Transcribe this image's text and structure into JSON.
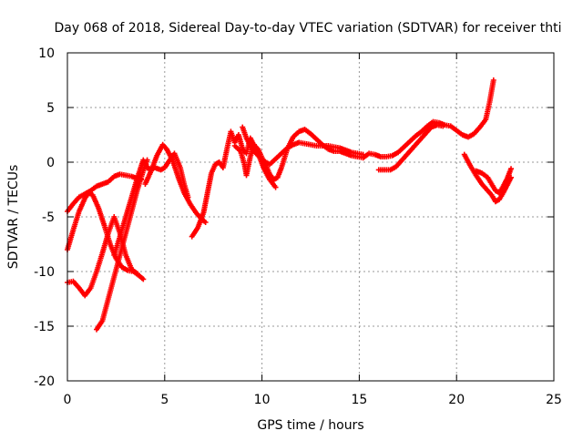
{
  "chart_data": {
    "type": "scatter",
    "title": "Day 068 of 2018, Sidereal Day-to-day VTEC variation (SDTVAR) for receiver thti",
    "xlabel": "GPS time / hours",
    "ylabel": "SDTVAR / TECUs",
    "xlim": [
      0,
      25
    ],
    "ylim": [
      -20,
      10
    ],
    "xticks": [
      0,
      5,
      10,
      15,
      20,
      25
    ],
    "yticks": [
      -20,
      -15,
      -10,
      -5,
      0,
      5,
      10
    ],
    "xtick_labels": [
      "0",
      "5",
      "10",
      "15",
      "20",
      "25"
    ],
    "ytick_labels": [
      "-20",
      "-15",
      "-10",
      "-5",
      "0",
      "5",
      "10"
    ],
    "grid": true,
    "legend": "none",
    "marker": "plus",
    "color": "#ff0000",
    "series": [
      {
        "points": [
          [
            0.0,
            -4.5
          ],
          [
            0.3,
            -3.8
          ],
          [
            0.6,
            -3.2
          ],
          [
            0.9,
            -2.9
          ],
          [
            1.2,
            -2.6
          ],
          [
            1.5,
            -2.2
          ],
          [
            1.8,
            -2.0
          ],
          [
            2.1,
            -1.8
          ],
          [
            2.4,
            -1.3
          ],
          [
            2.7,
            -1.1
          ],
          [
            3.0,
            -1.2
          ],
          [
            3.3,
            -1.3
          ],
          [
            3.6,
            -1.5
          ],
          [
            3.8,
            -1.6
          ]
        ]
      },
      {
        "points": [
          [
            0.0,
            -8.0
          ],
          [
            0.3,
            -6.2
          ],
          [
            0.6,
            -4.5
          ],
          [
            0.9,
            -3.3
          ],
          [
            1.1,
            -2.8
          ],
          [
            1.3,
            -3.0
          ],
          [
            1.6,
            -4.2
          ],
          [
            1.9,
            -5.8
          ],
          [
            2.2,
            -7.5
          ],
          [
            2.5,
            -8.8
          ],
          [
            2.8,
            -9.6
          ],
          [
            3.1,
            -9.9
          ],
          [
            3.4,
            -10.0
          ],
          [
            3.7,
            -10.4
          ],
          [
            3.9,
            -10.7
          ]
        ]
      },
      {
        "points": [
          [
            0.0,
            -11.0
          ],
          [
            0.3,
            -10.9
          ],
          [
            0.6,
            -11.5
          ],
          [
            0.9,
            -12.2
          ],
          [
            1.2,
            -11.5
          ],
          [
            1.5,
            -10.0
          ],
          [
            1.8,
            -8.3
          ],
          [
            2.1,
            -6.5
          ],
          [
            2.4,
            -5.0
          ],
          [
            2.7,
            -6.5
          ],
          [
            3.0,
            -8.5
          ],
          [
            3.3,
            -9.8
          ],
          [
            3.6,
            -10.2
          ]
        ]
      },
      {
        "points": [
          [
            1.5,
            -15.3
          ],
          [
            1.8,
            -14.5
          ],
          [
            2.1,
            -12.5
          ],
          [
            2.4,
            -10.5
          ],
          [
            2.7,
            -8.5
          ],
          [
            3.0,
            -6.5
          ],
          [
            3.3,
            -4.5
          ],
          [
            3.6,
            -2.5
          ],
          [
            3.9,
            -0.8
          ],
          [
            4.1,
            0.2
          ]
        ]
      },
      {
        "points": [
          [
            2.4,
            -8.5
          ],
          [
            2.7,
            -6.8
          ],
          [
            3.0,
            -5.0
          ],
          [
            3.3,
            -3.2
          ],
          [
            3.6,
            -1.4
          ],
          [
            3.9,
            0.2
          ],
          [
            4.2,
            -0.7
          ],
          [
            4.5,
            -0.5
          ],
          [
            4.8,
            -0.7
          ],
          [
            5.0,
            -0.5
          ],
          [
            5.3,
            0.3
          ],
          [
            5.5,
            0.8
          ],
          [
            5.8,
            -0.5
          ],
          [
            6.0,
            -2.0
          ],
          [
            6.2,
            -3.2
          ]
        ]
      },
      {
        "points": [
          [
            4.0,
            -2.0
          ],
          [
            4.3,
            -0.8
          ],
          [
            4.6,
            0.6
          ],
          [
            4.9,
            1.6
          ],
          [
            5.1,
            1.2
          ],
          [
            5.4,
            0.2
          ],
          [
            5.7,
            -1.4
          ],
          [
            6.0,
            -2.8
          ],
          [
            6.3,
            -3.8
          ],
          [
            6.6,
            -4.6
          ],
          [
            6.9,
            -5.2
          ],
          [
            7.1,
            -5.5
          ]
        ]
      },
      {
        "points": [
          [
            6.4,
            -6.8
          ],
          [
            6.7,
            -6.0
          ],
          [
            7.0,
            -4.6
          ],
          [
            7.2,
            -2.8
          ],
          [
            7.4,
            -1.0
          ],
          [
            7.6,
            -0.2
          ],
          [
            7.8,
            0.0
          ],
          [
            8.0,
            -0.5
          ],
          [
            8.2,
            1.2
          ],
          [
            8.4,
            2.8
          ],
          [
            8.6,
            1.8
          ],
          [
            8.8,
            2.5
          ],
          [
            9.0,
            1.2
          ],
          [
            9.2,
            0.8
          ],
          [
            9.4,
            2.2
          ],
          [
            9.6,
            1.5
          ],
          [
            9.8,
            1.2
          ],
          [
            10.0,
            0.4
          ],
          [
            10.2,
            -0.3
          ],
          [
            10.4,
            -1.1
          ],
          [
            10.6,
            -1.6
          ],
          [
            10.8,
            -1.4
          ],
          [
            11.0,
            -0.5
          ],
          [
            11.3,
            1.2
          ],
          [
            11.6,
            2.3
          ],
          [
            11.9,
            2.8
          ],
          [
            12.2,
            3.0
          ],
          [
            12.5,
            2.6
          ],
          [
            12.8,
            2.1
          ],
          [
            13.1,
            1.6
          ],
          [
            13.4,
            1.2
          ],
          [
            13.7,
            1.0
          ],
          [
            14.0,
            1.0
          ],
          [
            14.3,
            0.8
          ],
          [
            14.6,
            0.6
          ],
          [
            14.9,
            0.5
          ],
          [
            15.2,
            0.4
          ],
          [
            15.5,
            0.8
          ],
          [
            15.8,
            0.7
          ],
          [
            16.1,
            0.5
          ],
          [
            16.4,
            0.5
          ],
          [
            16.7,
            0.6
          ],
          [
            17.0,
            0.9
          ],
          [
            17.3,
            1.4
          ],
          [
            17.6,
            1.9
          ],
          [
            17.9,
            2.4
          ],
          [
            18.2,
            2.8
          ],
          [
            18.5,
            3.3
          ],
          [
            18.8,
            3.7
          ],
          [
            19.1,
            3.6
          ],
          [
            19.4,
            3.4
          ],
          [
            19.7,
            3.3
          ],
          [
            20.0,
            2.9
          ],
          [
            20.3,
            2.5
          ],
          [
            20.6,
            2.3
          ],
          [
            20.9,
            2.6
          ],
          [
            21.2,
            3.2
          ],
          [
            21.5,
            3.9
          ],
          [
            21.7,
            5.5
          ],
          [
            21.9,
            7.5
          ]
        ]
      },
      {
        "points": [
          [
            9.0,
            3.2
          ],
          [
            9.2,
            2.2
          ],
          [
            9.5,
            1.2
          ],
          [
            9.8,
            0.6
          ],
          [
            10.1,
            0.1
          ],
          [
            10.4,
            -0.2
          ],
          [
            10.7,
            0.3
          ],
          [
            11.0,
            0.8
          ],
          [
            11.3,
            1.3
          ],
          [
            11.6,
            1.6
          ],
          [
            11.9,
            1.8
          ],
          [
            12.2,
            1.7
          ],
          [
            12.5,
            1.6
          ],
          [
            12.8,
            1.5
          ],
          [
            13.1,
            1.5
          ],
          [
            13.4,
            1.5
          ],
          [
            13.7,
            1.4
          ],
          [
            14.0,
            1.3
          ],
          [
            14.3,
            1.1
          ],
          [
            14.6,
            0.9
          ],
          [
            14.9,
            0.8
          ],
          [
            15.2,
            0.7
          ]
        ]
      },
      {
        "points": [
          [
            8.6,
            1.5
          ],
          [
            8.9,
            1.0
          ],
          [
            9.1,
            -0.2
          ],
          [
            9.2,
            -1.2
          ],
          [
            9.4,
            0.5
          ],
          [
            9.6,
            1.6
          ],
          [
            9.8,
            0.8
          ],
          [
            10.1,
            -0.6
          ],
          [
            10.4,
            -1.6
          ],
          [
            10.7,
            -2.3
          ]
        ]
      },
      {
        "points": [
          [
            16.0,
            -0.7
          ],
          [
            16.3,
            -0.7
          ],
          [
            16.6,
            -0.7
          ],
          [
            16.9,
            -0.4
          ],
          [
            17.2,
            0.2
          ],
          [
            17.5,
            0.8
          ],
          [
            17.8,
            1.4
          ],
          [
            18.1,
            2.0
          ],
          [
            18.4,
            2.6
          ],
          [
            18.7,
            3.2
          ],
          [
            19.0,
            3.4
          ],
          [
            19.3,
            3.3
          ]
        ]
      },
      {
        "points": [
          [
            20.4,
            0.7
          ],
          [
            20.7,
            -0.3
          ],
          [
            21.0,
            -1.2
          ],
          [
            21.3,
            -2.0
          ],
          [
            21.6,
            -2.6
          ],
          [
            21.8,
            -3.0
          ],
          [
            22.0,
            -3.6
          ],
          [
            22.2,
            -3.4
          ],
          [
            22.4,
            -2.8
          ],
          [
            22.6,
            -2.1
          ],
          [
            22.8,
            -1.4
          ]
        ]
      },
      {
        "points": [
          [
            21.0,
            -0.8
          ],
          [
            21.3,
            -1.0
          ],
          [
            21.6,
            -1.4
          ],
          [
            21.8,
            -2.0
          ],
          [
            22.0,
            -2.6
          ],
          [
            22.2,
            -2.8
          ],
          [
            22.4,
            -2.2
          ],
          [
            22.6,
            -1.5
          ],
          [
            22.8,
            -0.6
          ]
        ]
      }
    ]
  }
}
